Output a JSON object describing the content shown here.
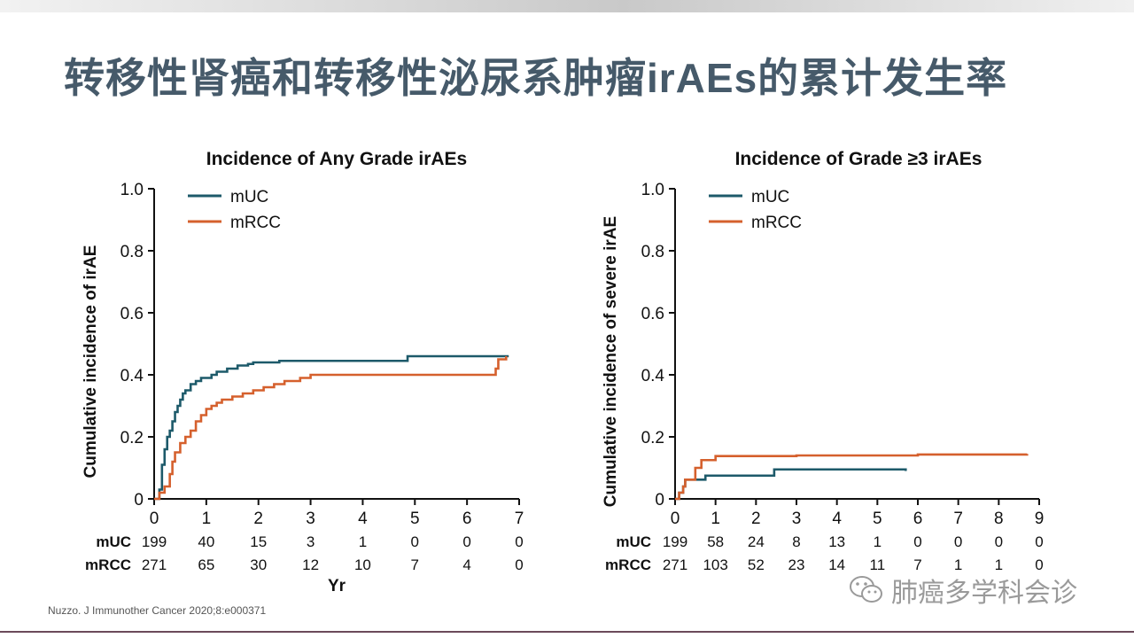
{
  "slide": {
    "title": "转移性肾癌和转移性泌尿系肿瘤irAEs的累计发生率",
    "citation": "Nuzzo. J Immunother Cancer 2020;8:e000371",
    "watermark": "肺癌多学科会诊",
    "watermark_icon": "wechat-icon"
  },
  "colors": {
    "mUC": "#1d5a6a",
    "mRCC": "#d5602d",
    "title": "#465a6a"
  },
  "chart_data": [
    {
      "type": "line",
      "title": "Incidence of Any Grade irAEs",
      "xlabel": "Yr",
      "ylabel": "Cumulative incidence of irAE",
      "xlim": [
        0,
        7
      ],
      "ylim": [
        0,
        1.0
      ],
      "xticks": [
        0,
        1,
        2,
        3,
        4,
        5,
        6,
        7
      ],
      "yticks": [
        "0",
        "0.2",
        "0.4",
        "0.6",
        "0.8",
        "1.0"
      ],
      "legend": "top-left",
      "series": [
        {
          "name": "mUC",
          "color": "#1d5a6a",
          "x": [
            0,
            0.1,
            0.15,
            0.2,
            0.25,
            0.3,
            0.35,
            0.4,
            0.45,
            0.5,
            0.55,
            0.6,
            0.7,
            0.8,
            0.9,
            1.0,
            1.1,
            1.2,
            1.4,
            1.6,
            1.8,
            1.9,
            2.1,
            2.4,
            3.0,
            4.85,
            4.86,
            6.8
          ],
          "y": [
            0,
            0.03,
            0.11,
            0.16,
            0.2,
            0.22,
            0.25,
            0.28,
            0.3,
            0.32,
            0.34,
            0.35,
            0.37,
            0.38,
            0.39,
            0.39,
            0.4,
            0.41,
            0.42,
            0.43,
            0.435,
            0.44,
            0.44,
            0.445,
            0.445,
            0.445,
            0.46,
            0.46
          ]
        },
        {
          "name": "mRCC",
          "color": "#d5602d",
          "x": [
            0,
            0.1,
            0.2,
            0.3,
            0.35,
            0.4,
            0.5,
            0.6,
            0.7,
            0.8,
            0.9,
            1.0,
            1.1,
            1.2,
            1.3,
            1.5,
            1.7,
            1.9,
            2.1,
            2.3,
            2.5,
            2.8,
            3.0,
            4.9,
            5.0,
            6.55,
            6.6,
            6.75
          ],
          "y": [
            0,
            0.02,
            0.04,
            0.08,
            0.12,
            0.15,
            0.18,
            0.2,
            0.22,
            0.25,
            0.27,
            0.29,
            0.3,
            0.31,
            0.32,
            0.33,
            0.34,
            0.35,
            0.36,
            0.37,
            0.38,
            0.39,
            0.4,
            0.4,
            0.4,
            0.42,
            0.45,
            0.46
          ]
        }
      ],
      "risk_table": {
        "x": [
          0,
          1,
          2,
          3,
          4,
          5,
          6,
          7
        ],
        "rows": [
          {
            "label": "mUC",
            "values": [
              "199",
              "40",
              "15",
              "3",
              "1",
              "0",
              "0",
              "0"
            ]
          },
          {
            "label": "mRCC",
            "values": [
              "271",
              "65",
              "30",
              "12",
              "10",
              "7",
              "4",
              "0"
            ]
          }
        ]
      }
    },
    {
      "type": "line",
      "title": "Incidence of Grade ≥3 irAEs",
      "xlabel": "",
      "ylabel": "Cumulative incidence of severe irAE",
      "xlim": [
        0,
        9
      ],
      "ylim": [
        0,
        1.0
      ],
      "xticks": [
        0,
        1,
        2,
        3,
        4,
        5,
        6,
        7,
        8,
        9
      ],
      "yticks": [
        "0",
        "0.2",
        "0.4",
        "0.6",
        "0.8",
        "1.0"
      ],
      "legend": "top-left",
      "series": [
        {
          "name": "mUC",
          "color": "#1d5a6a",
          "x": [
            0,
            0.1,
            0.2,
            0.25,
            0.7,
            0.75,
            2.4,
            2.45,
            5.7
          ],
          "y": [
            0,
            0.02,
            0.04,
            0.062,
            0.062,
            0.075,
            0.075,
            0.095,
            0.09
          ]
        },
        {
          "name": "mRCC",
          "color": "#d5602d",
          "x": [
            0,
            0.1,
            0.2,
            0.25,
            0.45,
            0.5,
            0.6,
            0.65,
            0.95,
            1.0,
            3.0,
            6.0,
            8.7
          ],
          "y": [
            0,
            0.02,
            0.04,
            0.062,
            0.062,
            0.1,
            0.1,
            0.125,
            0.125,
            0.138,
            0.14,
            0.143,
            0.145
          ]
        }
      ],
      "risk_table": {
        "x": [
          0,
          1,
          2,
          3,
          4,
          5,
          6,
          7,
          8,
          9
        ],
        "rows": [
          {
            "label": "mUC",
            "values": [
              "199",
              "58",
              "24",
              "8",
              "13",
              "1",
              "0",
              "0",
              "0",
              "0"
            ]
          },
          {
            "label": "mRCC",
            "values": [
              "271",
              "103",
              "52",
              "23",
              "14",
              "11",
              "7",
              "1",
              "1",
              "0"
            ]
          }
        ]
      }
    }
  ]
}
